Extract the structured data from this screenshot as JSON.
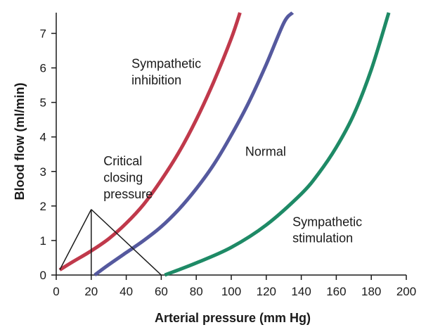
{
  "chart_data": {
    "type": "line",
    "title": "",
    "xlabel": "Arterial pressure (mm Hg)",
    "ylabel": "Blood flow (ml/min)",
    "xlim": [
      0,
      200
    ],
    "ylim": [
      0,
      7.6
    ],
    "xticks": [
      0,
      20,
      40,
      60,
      80,
      100,
      120,
      140,
      160,
      180,
      200
    ],
    "yticks": [
      0,
      1,
      2,
      3,
      4,
      5,
      6,
      7
    ],
    "grid": false,
    "legend": "none",
    "series": [
      {
        "name": "Sympathetic inhibition",
        "color": "#c0394b",
        "x": [
          2,
          10,
          20,
          30,
          40,
          50,
          60,
          70,
          80,
          90,
          100,
          105
        ],
        "y": [
          0.15,
          0.4,
          0.7,
          1.05,
          1.5,
          2.05,
          2.75,
          3.55,
          4.5,
          5.6,
          6.85,
          7.6
        ]
      },
      {
        "name": "Normal",
        "color": "#55599e",
        "x": [
          22,
          30,
          40,
          50,
          60,
          70,
          80,
          90,
          100,
          110,
          120,
          130,
          135
        ],
        "y": [
          0.0,
          0.3,
          0.65,
          1.0,
          1.4,
          1.9,
          2.5,
          3.2,
          4.05,
          5.0,
          6.1,
          7.3,
          7.6
        ]
      },
      {
        "name": "Sympathetic stimulation",
        "color": "#1e8a66",
        "x": [
          62,
          80,
          100,
          120,
          140,
          150,
          160,
          170,
          180,
          190
        ],
        "y": [
          0.0,
          0.35,
          0.8,
          1.45,
          2.35,
          2.95,
          3.7,
          4.65,
          5.95,
          7.6
        ]
      }
    ],
    "annotations": [
      {
        "text": "Sympathetic",
        "at": [
          43,
          6.0
        ]
      },
      {
        "text": "inhibition",
        "at": [
          43,
          5.52
        ]
      },
      {
        "text": "Normal",
        "at": [
          108,
          3.45
        ]
      },
      {
        "text": "Critical",
        "at": [
          27,
          3.18
        ]
      },
      {
        "text": "closing",
        "at": [
          27,
          2.7
        ]
      },
      {
        "text": "pressure",
        "at": [
          27,
          2.22
        ]
      },
      {
        "text": "Sympathetic",
        "at": [
          135,
          1.42
        ]
      },
      {
        "text": "stimulation",
        "at": [
          135,
          0.95
        ]
      }
    ],
    "pointer": {
      "apex": [
        20,
        1.9
      ],
      "targets": [
        [
          2,
          0.15
        ],
        [
          20,
          0.0
        ],
        [
          60,
          0.0
        ]
      ]
    }
  }
}
